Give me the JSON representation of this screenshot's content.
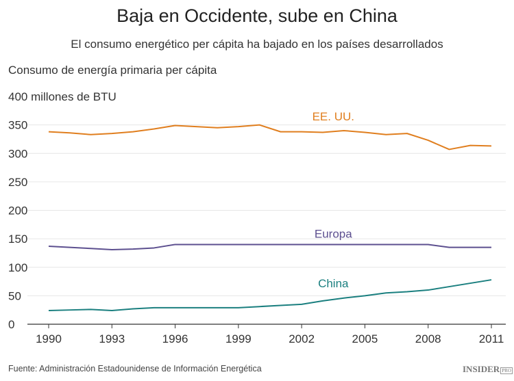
{
  "title": "Baja en Occidente, sube en China",
  "subtitle": "El consumo energético per cápita ha bajado en los países desarrollados",
  "source": "Fuente: Administración Estadounidense de Información Energética",
  "logo": {
    "text": "INSIDER",
    "sup": "PRO"
  },
  "chart_data": {
    "type": "line",
    "title": "Baja en Occidente, sube en China",
    "ylabel": "Consumo de energía primaria per cápita",
    "yunit_label": "400 millones de BTU",
    "ylim": [
      0,
      400
    ],
    "xlim": [
      1990,
      2011
    ],
    "grid": true,
    "yticks": [
      0,
      50,
      100,
      150,
      200,
      250,
      300,
      350
    ],
    "xticks": [
      1990,
      1993,
      1996,
      1999,
      2002,
      2005,
      2008,
      2011
    ],
    "x": [
      1990,
      1991,
      1992,
      1993,
      1994,
      1995,
      1996,
      1997,
      1998,
      1999,
      2000,
      2001,
      2002,
      2003,
      2004,
      2005,
      2006,
      2007,
      2008,
      2009,
      2010,
      2011
    ],
    "series": [
      {
        "name": "EE. UU.",
        "color": "#e07e1e",
        "label_x": 2003.5,
        "label_y": 358,
        "values": [
          338,
          336,
          333,
          335,
          338,
          343,
          349,
          347,
          345,
          347,
          350,
          338,
          338,
          337,
          340,
          337,
          333,
          335,
          323,
          307,
          314,
          313
        ]
      },
      {
        "name": "Europa",
        "color": "#5c4f8f",
        "label_x": 2003.5,
        "label_y": 152,
        "values": [
          137,
          135,
          133,
          131,
          132,
          134,
          140,
          140,
          140,
          140,
          140,
          140,
          140,
          140,
          140,
          140,
          140,
          140,
          140,
          135,
          135,
          135
        ]
      },
      {
        "name": "China",
        "color": "#1a7f7f",
        "label_x": 2003.5,
        "label_y": 65,
        "values": [
          24,
          25,
          26,
          24,
          27,
          29,
          29,
          29,
          29,
          29,
          31,
          33,
          35,
          41,
          46,
          50,
          55,
          57,
          60,
          66,
          72,
          78
        ]
      }
    ]
  }
}
